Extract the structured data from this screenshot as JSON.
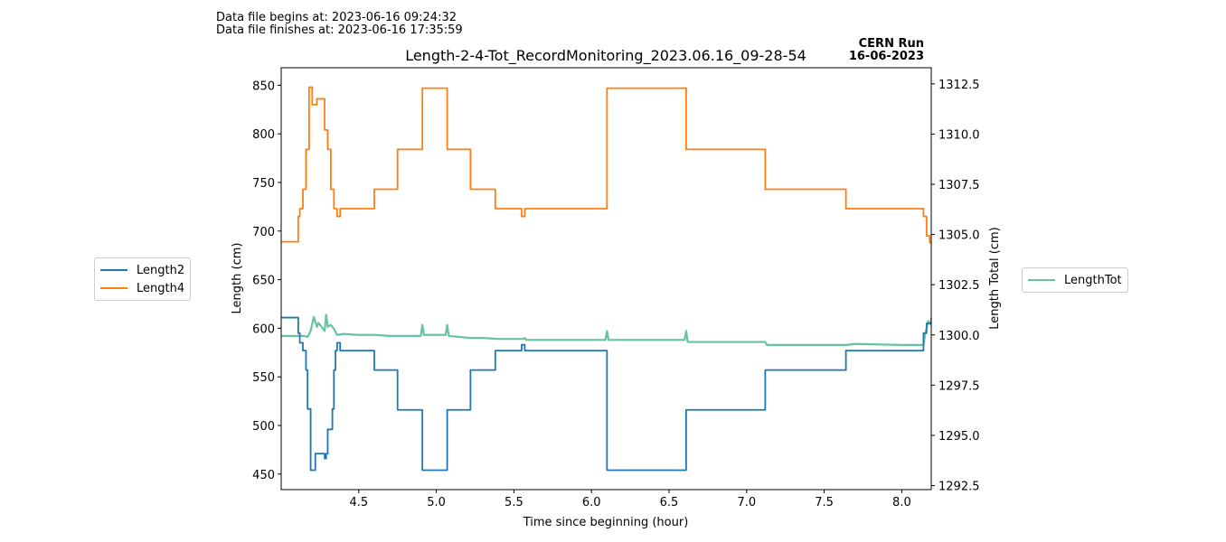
{
  "header": {
    "begin": "Data file begins at: 2023-06-16 09:24:32",
    "finish": "Data file finishes at: 2023-06-16 17:35:59",
    "run_line1": "CERN Run",
    "run_line2": "16-06-2023"
  },
  "legend_left": [
    {
      "label": "Length2",
      "color": "#1f77b4"
    },
    {
      "label": "Length4",
      "color": "#ff7f0e"
    }
  ],
  "legend_right": [
    {
      "label": "LengthTot",
      "color": "#66c2a5"
    }
  ],
  "chart_data": {
    "type": "line",
    "title": "Length-2-4-Tot_RecordMonitoring_2023.06.16_09-28-54",
    "xlabel": "Time since beginning (hour)",
    "ylabel": "Length (cm)",
    "y2label": "Length Total (cm)",
    "xlim": [
      4.0,
      8.19
    ],
    "ylim": [
      434,
      868
    ],
    "y2lim": [
      1292.3,
      1313.3
    ],
    "xticks": [
      "4.5",
      "5.0",
      "5.5",
      "6.0",
      "6.5",
      "7.0",
      "7.5",
      "8.0"
    ],
    "xtick_values": [
      4.5,
      5.0,
      5.5,
      6.0,
      6.5,
      7.0,
      7.5,
      8.0
    ],
    "yticks": [
      "450",
      "500",
      "550",
      "600",
      "650",
      "700",
      "750",
      "800",
      "850"
    ],
    "ytick_values": [
      450,
      500,
      550,
      600,
      650,
      700,
      750,
      800,
      850
    ],
    "y2ticks": [
      "1292.5",
      "1295.0",
      "1297.5",
      "1300.0",
      "1302.5",
      "1305.0",
      "1307.5",
      "1310.0",
      "1312.5"
    ],
    "y2tick_values": [
      1292.5,
      1295.0,
      1297.5,
      1300.0,
      1302.5,
      1305.0,
      1307.5,
      1310.0,
      1312.5
    ],
    "grid": false,
    "series": [
      {
        "name": "Length2",
        "axis": "left",
        "color": "#1f77b4",
        "step": true,
        "x": [
          4.0,
          4.11,
          4.12,
          4.14,
          4.16,
          4.17,
          4.19,
          4.22,
          4.28,
          4.29,
          4.3,
          4.33,
          4.34,
          4.35,
          4.36,
          4.38,
          4.6,
          4.75,
          4.91,
          5.07,
          5.22,
          5.38,
          5.55,
          5.57,
          6.1,
          6.61,
          7.12,
          7.64,
          8.14,
          8.16,
          8.19
        ],
        "y": [
          611,
          595,
          585,
          577,
          557,
          517,
          454,
          471,
          466,
          471,
          496,
          517,
          557,
          577,
          585,
          577,
          557,
          516,
          454,
          516,
          557,
          577,
          583,
          577,
          454,
          516,
          557,
          577,
          595,
          605,
          611
        ]
      },
      {
        "name": "Length4",
        "axis": "left",
        "color": "#ff7f0e",
        "step": true,
        "x": [
          4.0,
          4.11,
          4.12,
          4.14,
          4.16,
          4.18,
          4.2,
          4.23,
          4.28,
          4.3,
          4.32,
          4.34,
          4.36,
          4.38,
          4.6,
          4.75,
          4.91,
          5.07,
          5.22,
          5.38,
          5.55,
          5.57,
          6.1,
          6.61,
          7.12,
          7.64,
          8.14,
          8.16,
          8.18
        ],
        "y": [
          689,
          715,
          723,
          743,
          784,
          848,
          830,
          836,
          804,
          784,
          743,
          723,
          715,
          723,
          743,
          784,
          847,
          784,
          743,
          723,
          715,
          723,
          847,
          784,
          743,
          723,
          715,
          695,
          688
        ]
      },
      {
        "name": "LengthTot",
        "axis": "right",
        "color": "#66c2a5",
        "step": false,
        "x": [
          4.0,
          4.15,
          4.17,
          4.19,
          4.21,
          4.23,
          4.24,
          4.26,
          4.28,
          4.29,
          4.3,
          4.32,
          4.34,
          4.36,
          4.4,
          4.5,
          4.6,
          4.7,
          4.8,
          4.9,
          4.91,
          4.92,
          5.0,
          5.06,
          5.07,
          5.08,
          5.22,
          5.3,
          5.4,
          5.56,
          5.57,
          5.58,
          5.8,
          6.0,
          6.09,
          6.1,
          6.11,
          6.4,
          6.6,
          6.61,
          6.62,
          6.9,
          7.12,
          7.13,
          7.3,
          7.64,
          7.7,
          8.0,
          8.14,
          8.15,
          8.17,
          8.19
        ],
        "y": [
          1299.95,
          1299.95,
          1299.9,
          1300.2,
          1300.9,
          1300.4,
          1300.6,
          1300.4,
          1300.2,
          1301.0,
          1300.4,
          1300.5,
          1300.3,
          1300.0,
          1300.05,
          1300.0,
          1300.0,
          1299.95,
          1299.95,
          1299.95,
          1300.5,
          1300.0,
          1300.0,
          1300.0,
          1300.5,
          1299.95,
          1299.85,
          1299.85,
          1299.8,
          1299.8,
          1299.85,
          1299.75,
          1299.75,
          1299.75,
          1299.75,
          1300.2,
          1299.75,
          1299.75,
          1299.75,
          1300.2,
          1299.65,
          1299.65,
          1299.65,
          1299.5,
          1299.5,
          1299.5,
          1299.55,
          1299.5,
          1299.5,
          1300.0,
          1300.7,
          1300.5
        ]
      }
    ]
  }
}
